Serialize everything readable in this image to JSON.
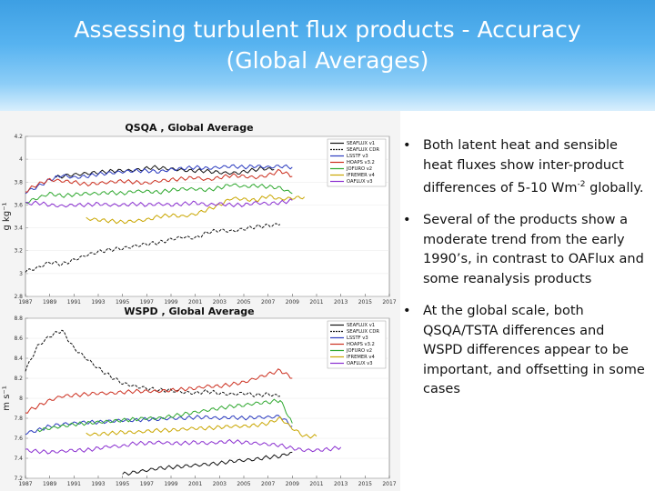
{
  "title_line1": "Assessing turbulent flux products - Accuracy",
  "title_line2": "(Global Averages)",
  "bullets": [
    {
      "text": "Both latent heat and sensible heat fluxes show inter-product differences of 5-10 Wm",
      "sup": "-2",
      "tail": " globally."
    },
    {
      "text": "Several of the products show a moderate trend from the early 1990’s, in contrast to OAFlux and some reanalysis products"
    },
    {
      "text": "At the global scale, both QSQA/TSTA differences and WSPD differences appear to be important, and offsetting in some cases"
    }
  ],
  "chart_data": [
    {
      "type": "line",
      "title": "QSQA , Global Average",
      "ylabel": "g kg⁻¹",
      "ylim": [
        2.8,
        4.2
      ],
      "yticks": [
        "4.2",
        "4",
        "3.8",
        "3.6",
        "3.4",
        "3.2",
        "3",
        "2.8"
      ],
      "xlim": [
        1987,
        2017
      ],
      "xticks": [
        "1987",
        "1989",
        "1991",
        "1993",
        "1995",
        "1997",
        "1999",
        "2001",
        "2003",
        "2005",
        "2007",
        "2009",
        "2011",
        "2013",
        "2015",
        "2017"
      ],
      "legend_position": "top-right",
      "series": [
        {
          "name": "SEAFLUX v1",
          "color": "#111111",
          "dash": "",
          "start": 1989.5,
          "end": 2007.5,
          "values": [
            3.84,
            3.86,
            3.87,
            3.88,
            3.89,
            3.9,
            3.9,
            3.91,
            3.93,
            3.92,
            3.91,
            3.9,
            3.9,
            3.89,
            3.88,
            3.88,
            3.9,
            3.92,
            3.91
          ]
        },
        {
          "name": "SEAFLUX CDR",
          "color": "#111111",
          "dash": "3,1.5",
          "start": 1987,
          "end": 2008,
          "values": [
            3.02,
            3.05,
            3.1,
            3.08,
            3.12,
            3.16,
            3.19,
            3.21,
            3.22,
            3.24,
            3.26,
            3.27,
            3.3,
            3.32,
            3.31,
            3.36,
            3.38,
            3.37,
            3.39,
            3.41,
            3.42,
            3.43
          ]
        },
        {
          "name": "LSSTF v3",
          "color": "#2b3bbf",
          "dash": "",
          "start": 1987,
          "end": 2009,
          "values": [
            3.71,
            3.76,
            3.82,
            3.86,
            3.84,
            3.85,
            3.87,
            3.88,
            3.89,
            3.9,
            3.9,
            3.89,
            3.91,
            3.92,
            3.93,
            3.92,
            3.93,
            3.94,
            3.93,
            3.94,
            3.93,
            3.94,
            3.93
          ]
        },
        {
          "name": "HOAPS v3.2",
          "color": "#cc2f1f",
          "dash": "",
          "start": 1987,
          "end": 2009,
          "values": [
            3.72,
            3.78,
            3.82,
            3.81,
            3.8,
            3.78,
            3.79,
            3.8,
            3.81,
            3.8,
            3.79,
            3.81,
            3.82,
            3.83,
            3.84,
            3.82,
            3.84,
            3.86,
            3.85,
            3.84,
            3.86,
            3.9,
            3.85
          ]
        },
        {
          "name": "JOFURO v2",
          "color": "#2fa82f",
          "dash": "",
          "start": 1987,
          "end": 2009,
          "values": [
            3.62,
            3.66,
            3.7,
            3.68,
            3.69,
            3.7,
            3.7,
            3.71,
            3.7,
            3.72,
            3.72,
            3.71,
            3.73,
            3.74,
            3.74,
            3.73,
            3.75,
            3.78,
            3.76,
            3.77,
            3.76,
            3.75,
            3.7
          ]
        },
        {
          "name": "IFREMER v4",
          "color": "#c9a600",
          "dash": "",
          "start": 1992,
          "end": 2010,
          "values": [
            3.48,
            3.47,
            3.46,
            3.45,
            3.46,
            3.47,
            3.5,
            3.51,
            3.5,
            3.52,
            3.56,
            3.6,
            3.66,
            3.65,
            3.64,
            3.68,
            3.65,
            3.66,
            3.67
          ]
        },
        {
          "name": "OAFLUX v3",
          "color": "#8a2fd0",
          "dash": "",
          "start": 1987,
          "end": 2009,
          "values": [
            3.61,
            3.62,
            3.6,
            3.59,
            3.6,
            3.6,
            3.61,
            3.6,
            3.6,
            3.61,
            3.6,
            3.61,
            3.6,
            3.61,
            3.62,
            3.6,
            3.61,
            3.6,
            3.6,
            3.62,
            3.61,
            3.62,
            3.64
          ]
        }
      ]
    },
    {
      "type": "line",
      "title": "WSPD , Global Average",
      "ylabel": "m s⁻¹",
      "ylim": [
        7.2,
        8.8
      ],
      "yticks": [
        "8.8",
        "8.6",
        "8.4",
        "8.2",
        "8",
        "7.8",
        "7.6",
        "7.4",
        "7.2"
      ],
      "xlim": [
        1987,
        2017
      ],
      "xticks": [
        "1987",
        "1989",
        "1991",
        "1993",
        "1995",
        "1997",
        "1999",
        "2001",
        "2003",
        "2005",
        "2007",
        "2009",
        "2011",
        "2013",
        "2015",
        "2017"
      ],
      "legend_position": "top-right",
      "series": [
        {
          "name": "SEAFLUX v1",
          "color": "#111111",
          "dash": "",
          "start": 1995,
          "end": 2009,
          "values": [
            7.24,
            7.26,
            7.28,
            7.3,
            7.31,
            7.32,
            7.33,
            7.34,
            7.35,
            7.37,
            7.38,
            7.39,
            7.41,
            7.42,
            7.46
          ]
        },
        {
          "name": "SEAFLUX CDR",
          "color": "#111111",
          "dash": "3,1.5",
          "start": 1987,
          "end": 2008,
          "values": [
            8.28,
            8.52,
            8.62,
            8.68,
            8.5,
            8.4,
            8.3,
            8.22,
            8.15,
            8.12,
            8.1,
            8.08,
            8.08,
            8.06,
            8.05,
            8.07,
            8.05,
            8.04,
            8.05,
            8.03,
            8.04,
            8.02
          ]
        },
        {
          "name": "LSSTF v3",
          "color": "#2b3bbf",
          "dash": "",
          "start": 1987,
          "end": 2009,
          "values": [
            7.65,
            7.68,
            7.72,
            7.74,
            7.75,
            7.76,
            7.76,
            7.77,
            7.78,
            7.78,
            7.79,
            7.79,
            7.8,
            7.8,
            7.81,
            7.81,
            7.8,
            7.81,
            7.8,
            7.81,
            7.81,
            7.82,
            7.72
          ]
        },
        {
          "name": "HOAPS v3.2",
          "color": "#cc2f1f",
          "dash": "",
          "start": 1987,
          "end": 2009,
          "values": [
            7.86,
            7.92,
            7.98,
            8.02,
            8.03,
            8.04,
            8.05,
            8.05,
            8.06,
            8.07,
            8.07,
            8.07,
            8.08,
            8.09,
            8.1,
            8.12,
            8.12,
            8.14,
            8.16,
            8.2,
            8.24,
            8.28,
            8.2
          ]
        },
        {
          "name": "JOFURO v2",
          "color": "#2fa82f",
          "dash": "",
          "start": 1988,
          "end": 2009,
          "values": [
            7.68,
            7.7,
            7.72,
            7.74,
            7.75,
            7.76,
            7.77,
            7.78,
            7.79,
            7.8,
            7.8,
            7.82,
            7.84,
            7.86,
            7.88,
            7.9,
            7.92,
            7.93,
            7.95,
            7.96,
            7.98,
            7.75
          ]
        },
        {
          "name": "IFREMER v4",
          "color": "#c9a600",
          "dash": "",
          "start": 1992,
          "end": 2011,
          "values": [
            7.64,
            7.64,
            7.65,
            7.66,
            7.66,
            7.67,
            7.68,
            7.68,
            7.69,
            7.7,
            7.7,
            7.71,
            7.72,
            7.72,
            7.73,
            7.75,
            7.8,
            7.7,
            7.62,
            7.62
          ]
        },
        {
          "name": "OAFLUX v3",
          "color": "#8a2fd0",
          "dash": "",
          "start": 1987,
          "end": 2013,
          "values": [
            7.48,
            7.47,
            7.46,
            7.47,
            7.48,
            7.48,
            7.5,
            7.52,
            7.52,
            7.55,
            7.55,
            7.56,
            7.55,
            7.55,
            7.56,
            7.55,
            7.56,
            7.57,
            7.56,
            7.55,
            7.54,
            7.53,
            7.5,
            7.48,
            7.48,
            7.49,
            7.51
          ]
        }
      ]
    }
  ]
}
